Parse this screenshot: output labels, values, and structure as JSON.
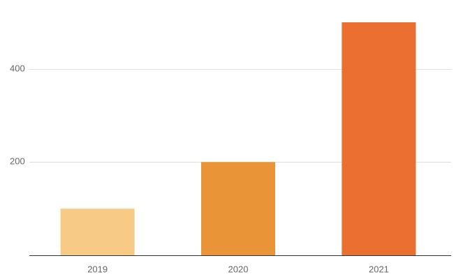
{
  "chart_data": {
    "type": "bar",
    "categories": [
      "2019",
      "2020",
      "2021"
    ],
    "values": [
      100,
      200,
      500
    ],
    "colors": [
      "#f7cb85",
      "#e99436",
      "#eb6f30"
    ],
    "title": "",
    "xlabel": "",
    "ylabel": "",
    "ylim": [
      0,
      500
    ],
    "yticks": [
      200,
      400
    ],
    "grid": true,
    "grid_color": "#dddddd",
    "axis_color": "#333333",
    "label_color": "#666666"
  }
}
